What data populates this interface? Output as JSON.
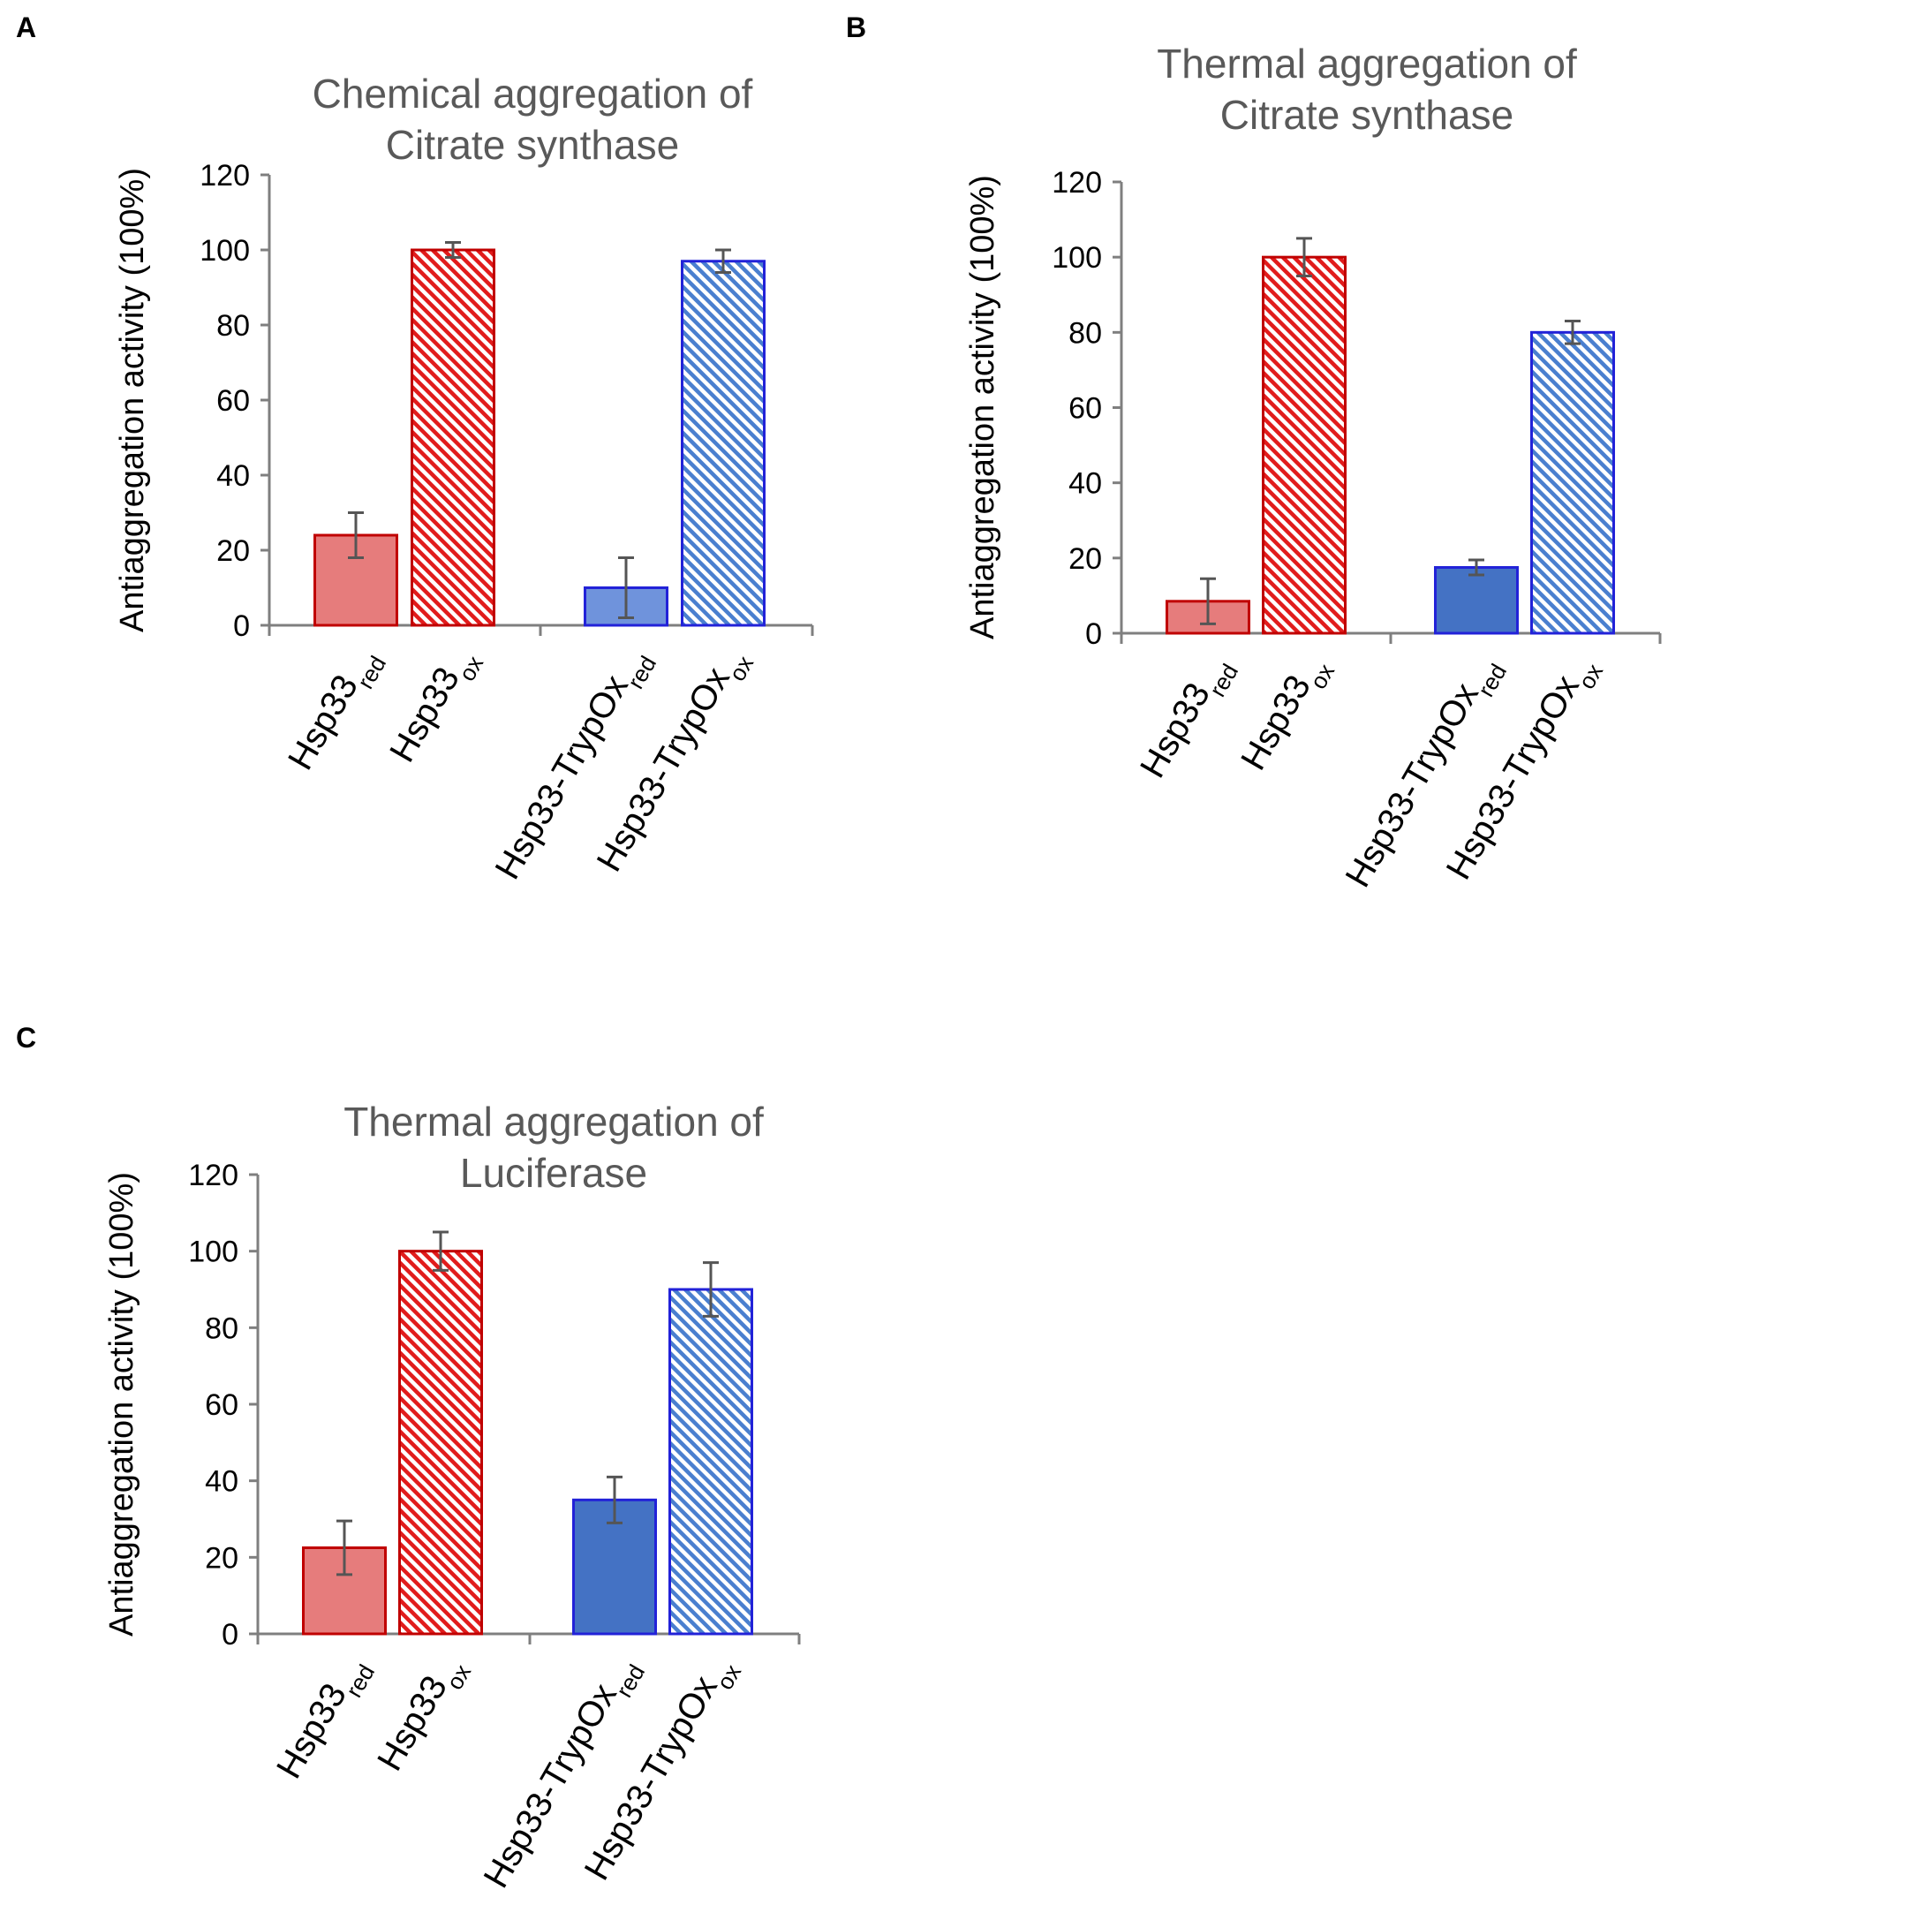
{
  "colors": {
    "red_solid": "#e67c7c",
    "red_edge": "#c00000",
    "red_hatch": "#e11c1c",
    "blue_light": "#6f93dc",
    "blue_dark": "#4472c4",
    "blue_edge": "#2222d8",
    "blue_hatch": "#4a7fcf",
    "axis": "#7f7f7f",
    "error": "#555555"
  },
  "chart_data": [
    {
      "panel": "A",
      "type": "bar",
      "title": [
        "Chemical aggregation of",
        "Citrate synthase"
      ],
      "ylabel": "Antiaggregation activity (100%)",
      "xlabel": "",
      "ylim": [
        0,
        120
      ],
      "yticks": [
        0,
        20,
        40,
        60,
        80,
        100,
        120
      ],
      "categories": [
        {
          "main": "Hsp33",
          "sub": "red"
        },
        {
          "main": "Hsp33",
          "sub": "ox"
        },
        {
          "main": "Hsp33-TrypOx",
          "sub": "red"
        },
        {
          "main": "Hsp33-TrypOx",
          "sub": "ox"
        }
      ],
      "values": [
        24,
        100,
        10,
        97
      ],
      "errors": [
        6,
        2,
        8,
        3
      ],
      "styles": [
        "red_solid",
        "red_hatch",
        "blue_light",
        "blue_hatch"
      ]
    },
    {
      "panel": "B",
      "type": "bar",
      "title": [
        "Thermal aggregation of",
        "Citrate synthase"
      ],
      "ylabel": "Antiaggregation activity (100%)",
      "xlabel": "",
      "ylim": [
        0,
        120
      ],
      "yticks": [
        0,
        20,
        40,
        60,
        80,
        100,
        120
      ],
      "categories": [
        {
          "main": "Hsp33",
          "sub": "red"
        },
        {
          "main": "Hsp33",
          "sub": "ox"
        },
        {
          "main": "Hsp33-TrypOx",
          "sub": "red"
        },
        {
          "main": "Hsp33-TrypOx",
          "sub": "ox"
        }
      ],
      "values": [
        8.5,
        100,
        17.5,
        80
      ],
      "errors": [
        6,
        5,
        2,
        3
      ],
      "styles": [
        "red_solid",
        "red_hatch",
        "blue_dark",
        "blue_hatch"
      ]
    },
    {
      "panel": "C",
      "type": "bar",
      "title": [
        "Thermal aggregation of",
        "Luciferase"
      ],
      "ylabel": "Antiaggregation activity (100%)",
      "xlabel": "",
      "ylim": [
        0,
        120
      ],
      "yticks": [
        0,
        20,
        40,
        60,
        80,
        100,
        120
      ],
      "categories": [
        {
          "main": "Hsp33",
          "sub": "red"
        },
        {
          "main": "Hsp33",
          "sub": "ox"
        },
        {
          "main": "Hsp33-TrypOx",
          "sub": "red"
        },
        {
          "main": "Hsp33-TrypOx",
          "sub": "ox"
        }
      ],
      "values": [
        22.5,
        100,
        35,
        90
      ],
      "errors": [
        7,
        5,
        6,
        7
      ],
      "styles": [
        "red_solid",
        "red_hatch",
        "blue_dark",
        "blue_hatch"
      ]
    }
  ]
}
